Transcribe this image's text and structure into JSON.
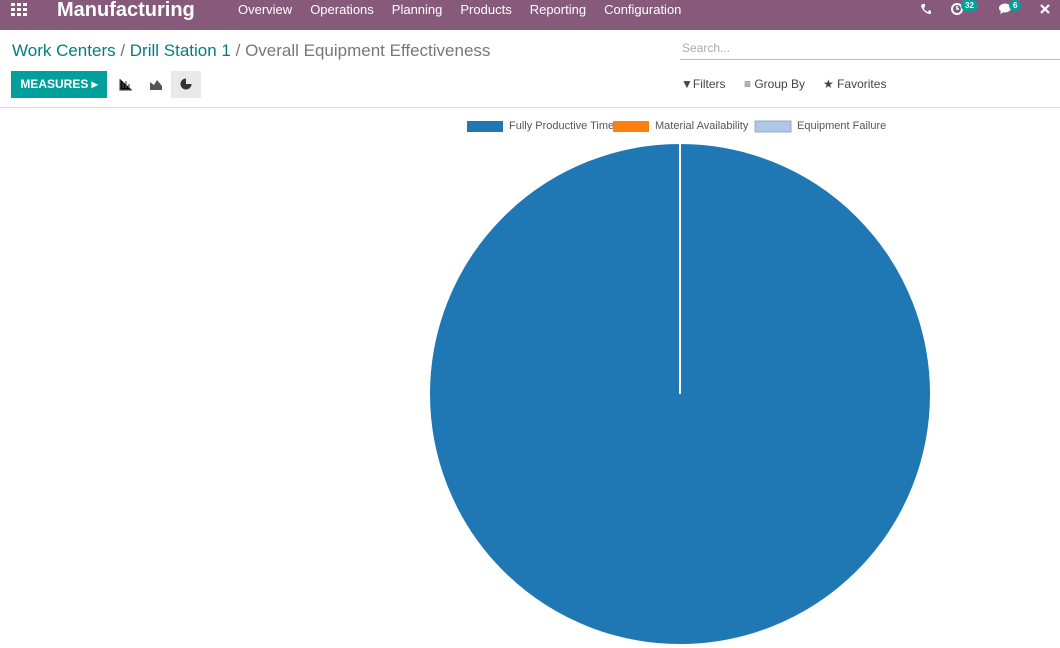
{
  "navbar": {
    "app": "Manufacturing",
    "menu": [
      "Overview",
      "Operations",
      "Planning",
      "Products",
      "Reporting",
      "Configuration"
    ],
    "activity_count": 32,
    "message_count": 6
  },
  "breadcrumb": [
    "Work Centers",
    "Drill Station 1",
    "Overall Equipment Effectiveness"
  ],
  "search": {
    "placeholder": "Search...",
    "filters": "Filters",
    "group_by": "Group By",
    "favorites": "Favorites"
  },
  "measures_button": "MEASURES",
  "chart_data": {
    "type": "pie",
    "legend": "top",
    "series": [
      {
        "name": "Fully Productive Time",
        "color": "#1f77b4",
        "values": [
          100
        ]
      },
      {
        "name": "Material Availability",
        "color": "#ff7f0e",
        "values": [
          0
        ]
      },
      {
        "name": "Equipment Failure",
        "color": "#aec7e8",
        "values": [
          0
        ]
      }
    ]
  }
}
